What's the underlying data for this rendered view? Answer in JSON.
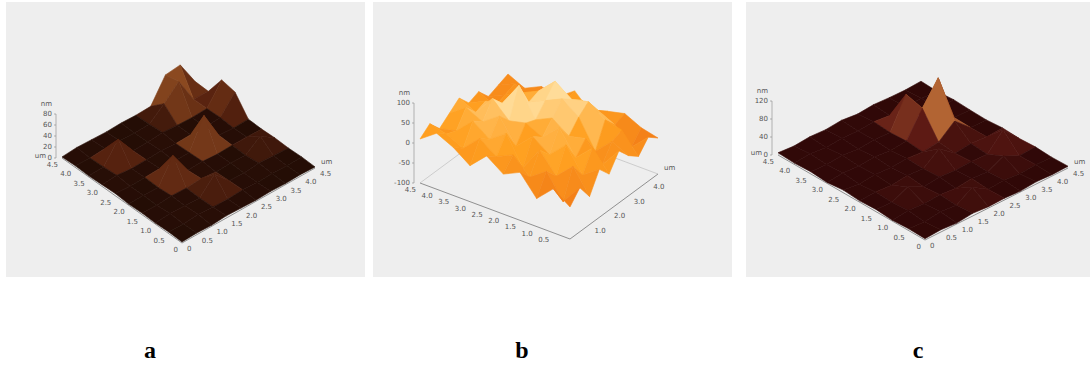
{
  "chart_data": [
    {
      "type": "surface",
      "panel_label": "a",
      "x_label": "um",
      "y_label": "um",
      "z_label": "nm",
      "xlim": [
        0,
        4.5
      ],
      "ylim": [
        0,
        4.5
      ],
      "zlim": [
        0,
        80
      ],
      "xticks": [
        0,
        0.5,
        {
          "value": 1,
          "label": "1.0"
        },
        1.5,
        {
          "value": 2,
          "label": "2.0"
        },
        2.5,
        {
          "value": 3,
          "label": "3.0"
        },
        3.5,
        {
          "value": 4,
          "label": "4.0"
        },
        4.5
      ],
      "yticks": [
        0,
        0.5,
        {
          "value": 1,
          "label": "1.0"
        },
        1.5,
        {
          "value": 2,
          "label": "2.0"
        },
        2.5,
        {
          "value": 3,
          "label": "3.0"
        },
        3.5,
        {
          "value": 4,
          "label": "4.0"
        },
        4.5
      ],
      "zticks": [
        0,
        20,
        40,
        60,
        80
      ],
      "colors": [
        "#1e0a04",
        "#5a2410",
        "#a8602a",
        "#f5d9a0"
      ],
      "x": [
        0,
        0.5,
        1,
        1.5,
        2,
        2.5,
        3,
        3.5,
        4,
        4.5
      ],
      "y": [
        0,
        0.5,
        1,
        1.5,
        2,
        2.5,
        3,
        3.5,
        4,
        4.5
      ],
      "heights": [
        [
          2,
          3,
          2,
          4,
          3,
          2,
          3,
          2,
          3,
          2
        ],
        [
          3,
          2,
          5,
          3,
          2,
          4,
          2,
          3,
          2,
          3
        ],
        [
          2,
          4,
          3,
          2,
          30,
          3,
          2,
          5,
          3,
          2
        ],
        [
          3,
          2,
          4,
          3,
          5,
          2,
          3,
          2,
          22,
          3
        ],
        [
          2,
          3,
          2,
          45,
          3,
          4,
          2,
          3,
          3,
          2
        ],
        [
          4,
          2,
          3,
          4,
          2,
          3,
          55,
          4,
          2,
          3
        ],
        [
          3,
          5,
          2,
          3,
          4,
          2,
          3,
          2,
          4,
          35
        ],
        [
          2,
          3,
          38,
          2,
          3,
          5,
          3,
          2,
          3,
          40
        ],
        [
          3,
          2,
          4,
          3,
          2,
          3,
          25,
          50,
          3,
          2
        ],
        [
          2,
          4,
          3,
          2,
          3,
          2,
          3,
          45,
          48,
          3
        ]
      ]
    },
    {
      "type": "surface",
      "panel_label": "b",
      "x_label": "um",
      "z_label": "nm",
      "xlim": [
        0,
        4.5
      ],
      "ylim": [
        0,
        4.5
      ],
      "zlim": [
        -100,
        100
      ],
      "xticks": [
        {
          "value": 1,
          "label": "1.0"
        },
        {
          "value": 2,
          "label": "2.0"
        },
        {
          "value": 3,
          "label": "3.0"
        },
        {
          "value": 4,
          "label": "4.0"
        }
      ],
      "yticks": [
        0.5,
        {
          "value": 1,
          "label": "1.0"
        },
        1.5,
        {
          "value": 2,
          "label": "2.0"
        },
        2.5,
        {
          "value": 3,
          "label": "3.0"
        },
        3.5,
        {
          "value": 4,
          "label": "4.0"
        },
        4.5
      ],
      "zticks": [
        -100,
        -50,
        0,
        50,
        100
      ],
      "colors": [
        "#a02800",
        "#e86010",
        "#ffa020",
        "#fff4c8"
      ],
      "x": [
        0,
        0.5,
        1,
        1.5,
        2,
        2.5,
        3,
        3.5,
        4,
        4.5
      ],
      "y": [
        0,
        0.5,
        1,
        1.5,
        2,
        2.5,
        3,
        3.5,
        4,
        4.5
      ],
      "heights": [
        [
          -20,
          10,
          -30,
          20,
          -10,
          30,
          0,
          -20,
          10,
          -10
        ],
        [
          10,
          -40,
          30,
          -10,
          40,
          -20,
          20,
          30,
          -30,
          0
        ],
        [
          -30,
          20,
          -10,
          50,
          0,
          30,
          -20,
          40,
          10,
          20
        ],
        [
          20,
          -10,
          40,
          10,
          60,
          20,
          50,
          70,
          30,
          10
        ],
        [
          0,
          30,
          -20,
          40,
          20,
          50,
          80,
          60,
          40,
          -10
        ],
        [
          30,
          10,
          50,
          0,
          40,
          30,
          60,
          90,
          20,
          30
        ],
        [
          -10,
          40,
          20,
          60,
          30,
          100,
          40,
          50,
          10,
          0
        ],
        [
          20,
          0,
          50,
          30,
          70,
          40,
          20,
          30,
          -20,
          10
        ],
        [
          40,
          20,
          10,
          50,
          20,
          30,
          0,
          10,
          20,
          -10
        ],
        [
          10,
          30,
          0,
          20,
          40,
          10,
          20,
          -10,
          0,
          10
        ]
      ]
    },
    {
      "type": "surface",
      "panel_label": "c",
      "x_label": "um",
      "y_label": "um",
      "z_label": "nm",
      "xlim": [
        0,
        4.5
      ],
      "ylim": [
        0,
        4.5
      ],
      "zlim": [
        0,
        120
      ],
      "xticks": [
        0,
        0.5,
        {
          "value": 1,
          "label": "1.0"
        },
        1.5,
        {
          "value": 2,
          "label": "2.0"
        },
        2.5,
        {
          "value": 3,
          "label": "3.0"
        },
        3.5,
        {
          "value": 4,
          "label": "4.0"
        },
        4.5
      ],
      "yticks": [
        0,
        0.5,
        {
          "value": 1,
          "label": "1.0"
        },
        1.5,
        {
          "value": 2,
          "label": "2.0"
        },
        2.5,
        {
          "value": 3,
          "label": "3.0"
        },
        3.5,
        {
          "value": 4,
          "label": "4.0"
        },
        4.5
      ],
      "zticks": [
        0,
        40,
        80,
        120
      ],
      "colors": [
        "#2a0606",
        "#5e1a14",
        "#b06030",
        "#f2cc80"
      ],
      "x": [
        0,
        0.5,
        1,
        1.5,
        2,
        2.5,
        3,
        3.5,
        4,
        4.5
      ],
      "y": [
        0,
        0.5,
        1,
        1.5,
        2,
        2.5,
        3,
        3.5,
        4,
        4.5
      ],
      "heights": [
        [
          3,
          5,
          2,
          6,
          3,
          4,
          2,
          5,
          3,
          4
        ],
        [
          4,
          2,
          6,
          3,
          25,
          3,
          5,
          2,
          4,
          3
        ],
        [
          2,
          6,
          3,
          5,
          2,
          6,
          3,
          20,
          3,
          5
        ],
        [
          5,
          3,
          20,
          2,
          6,
          3,
          5,
          3,
          40,
          3
        ],
        [
          3,
          5,
          2,
          6,
          3,
          30,
          2,
          6,
          3,
          5
        ],
        [
          6,
          2,
          5,
          3,
          5,
          2,
          6,
          35,
          3,
          2
        ],
        [
          2,
          5,
          3,
          6,
          2,
          5,
          60,
          110,
          4,
          3
        ],
        [
          5,
          3,
          6,
          2,
          5,
          3,
          70,
          5,
          3,
          5
        ],
        [
          3,
          6,
          2,
          5,
          3,
          6,
          2,
          4,
          5,
          2
        ],
        [
          5,
          2,
          5,
          3,
          6,
          2,
          5,
          3,
          2,
          4
        ]
      ]
    }
  ]
}
